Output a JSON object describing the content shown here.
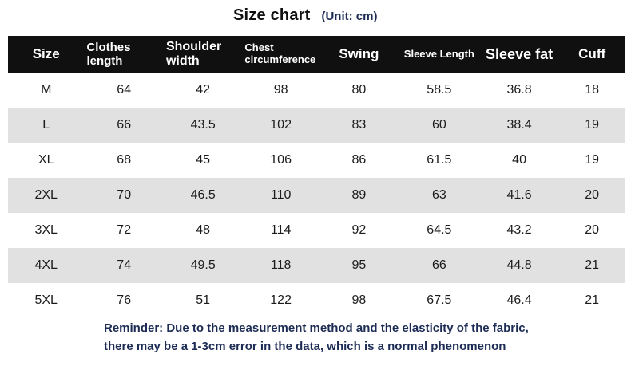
{
  "page": {
    "title": "Size chart",
    "unit_label": "(Unit: cm)"
  },
  "chart_data": {
    "type": "table",
    "title": "Size chart (Unit: cm)",
    "columns": [
      "Size",
      "Clothes length",
      "Shoulder width",
      "Chest circumference",
      "Swing",
      "Sleeve Length",
      "Sleeve fat",
      "Cuff"
    ],
    "rows": [
      [
        "M",
        "64",
        "42",
        "98",
        "80",
        "58.5",
        "36.8",
        "18"
      ],
      [
        "L",
        "66",
        "43.5",
        "102",
        "83",
        "60",
        "38.4",
        "19"
      ],
      [
        "XL",
        "68",
        "45",
        "106",
        "86",
        "61.5",
        "40",
        "19"
      ],
      [
        "2XL",
        "70",
        "46.5",
        "110",
        "89",
        "63",
        "41.6",
        "20"
      ],
      [
        "3XL",
        "72",
        "48",
        "114",
        "92",
        "64.5",
        "43.2",
        "20"
      ],
      [
        "4XL",
        "74",
        "49.5",
        "118",
        "95",
        "66",
        "44.8",
        "21"
      ],
      [
        "5XL",
        "76",
        "51",
        "122",
        "98",
        "67.5",
        "46.4",
        "21"
      ]
    ]
  },
  "reminder": {
    "line1": "Reminder: Due to the measurement method and the elasticity of the fabric,",
    "line2": "there may be a 1-3cm error in the data, which is a normal phenomenon"
  },
  "colors": {
    "header_bg": "#101010",
    "stripe_bg": "#e1e1e1",
    "navy": "#1d2c55",
    "size_header_text": "#8e98a6",
    "data_text": "#1c1c1c"
  }
}
